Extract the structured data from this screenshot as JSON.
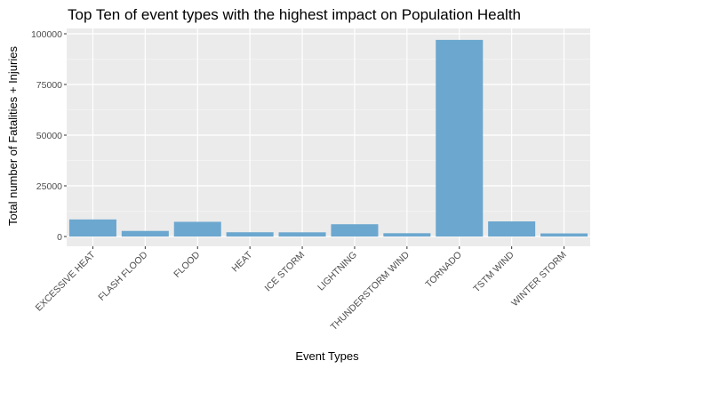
{
  "chart_data": {
    "type": "bar",
    "title": "Top Ten of event types with the highest impact on Population Health",
    "xlabel": "Event Types",
    "ylabel": "Total number of Fatalities + Injuries",
    "categories": [
      "EXCESSIVE HEAT",
      "FLASH FLOOD",
      "FLOOD",
      "HEAT",
      "ICE STORM",
      "LIGHTNING",
      "THUNDERSTORM WIND",
      "TORNADO",
      "TSTM WIND",
      "WINTER STORM"
    ],
    "values": [
      8428,
      2755,
      7259,
      2100,
      2064,
      6046,
      1621,
      96979,
      7461,
      1527
    ],
    "ylim": [
      0,
      100000
    ],
    "yticks": [
      0,
      25000,
      50000,
      75000,
      100000
    ],
    "ytick_labels": [
      "0",
      "25000",
      "50000",
      "75000",
      "100000"
    ],
    "grid": true,
    "legend": "none",
    "colors": {
      "bar": "#6ca7cf",
      "panel": "#ebebeb",
      "grid_major": "#ffffff",
      "grid_minor": "#f5f5f5"
    }
  }
}
